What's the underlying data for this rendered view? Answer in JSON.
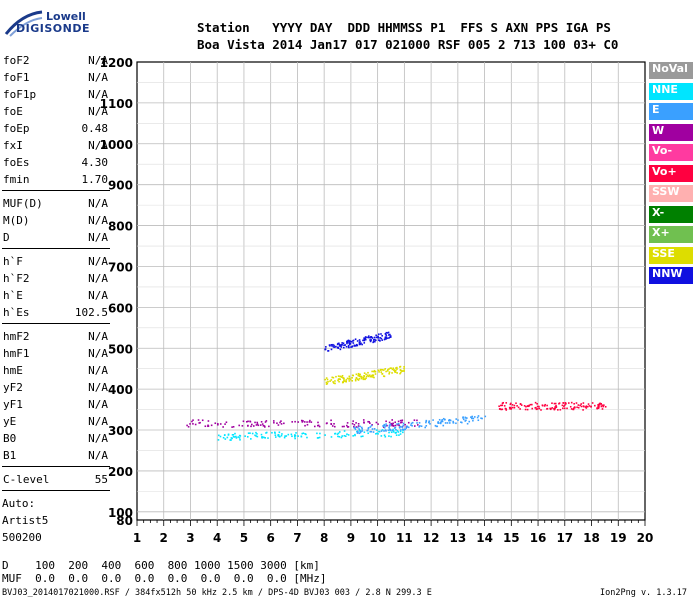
{
  "logo": {
    "line1": "Lowell",
    "line2": "DIGISONDE"
  },
  "header": {
    "row1": "Station   YYYY DAY  DDD HHMMSS P1  FFS S AXN PPS IGA PS",
    "row2": "Boa Vista 2014 Jan17 017 021000 RSF 005 2 713 100 03+ C0"
  },
  "params_group1": [
    {
      "key": "foF2",
      "val": "N/A"
    },
    {
      "key": "foF1",
      "val": "N/A"
    },
    {
      "key": "foF1p",
      "val": "N/A"
    },
    {
      "key": "foE",
      "val": "N/A"
    },
    {
      "key": "foEp",
      "val": "0.48"
    },
    {
      "key": "fxI",
      "val": "N/A"
    },
    {
      "key": "foEs",
      "val": "4.30"
    },
    {
      "key": "fmin",
      "val": "1.70"
    }
  ],
  "params_group2": [
    {
      "key": "MUF(D)",
      "val": "N/A"
    },
    {
      "key": "M(D)",
      "val": "N/A"
    },
    {
      "key": "D",
      "val": "N/A"
    }
  ],
  "params_group3": [
    {
      "key": "h`F",
      "val": "N/A"
    },
    {
      "key": "h`F2",
      "val": "N/A"
    },
    {
      "key": "h`E",
      "val": "N/A"
    },
    {
      "key": "h`Es",
      "val": "102.5"
    }
  ],
  "params_group4": [
    {
      "key": "hmF2",
      "val": "N/A"
    },
    {
      "key": "hmF1",
      "val": "N/A"
    },
    {
      "key": "hmE",
      "val": "N/A"
    },
    {
      "key": "yF2",
      "val": "N/A"
    },
    {
      "key": "yF1",
      "val": "N/A"
    },
    {
      "key": "yE",
      "val": "N/A"
    },
    {
      "key": "B0",
      "val": "N/A"
    },
    {
      "key": "B1",
      "val": "N/A"
    }
  ],
  "params_group5": [
    {
      "key": "C-level",
      "val": "55"
    }
  ],
  "auto": {
    "line1": "Auto:",
    "line2": "Artist5",
    "line3": "500200"
  },
  "legend": [
    {
      "label": "NoVal",
      "color": "#9a9a9a"
    },
    {
      "label": "NNE",
      "color": "#00e5ff"
    },
    {
      "label": "E",
      "color": "#3aa0ff"
    },
    {
      "label": "W",
      "color": "#a000a0"
    },
    {
      "label": "Vo-",
      "color": "#ff3aa0"
    },
    {
      "label": "Vo+",
      "color": "#ff0040"
    },
    {
      "label": "SSW",
      "color": "#ffb0b0"
    },
    {
      "label": "X-",
      "color": "#008000"
    },
    {
      "label": "X+",
      "color": "#70c050"
    },
    {
      "label": "SSE",
      "color": "#dddd00"
    },
    {
      "label": "NNW",
      "color": "#1010e0"
    }
  ],
  "bottom": {
    "d_row": "D    100  200  400  600  800 1000 1500 3000 [km]",
    "muf_row": "MUF  0.0  0.0  0.0  0.0  0.0  0.0  0.0  0.0 [MHz]"
  },
  "footer": {
    "left": "BVJ03_2014017021000.RSF / 384fx512h 50 kHz 2.5 km / DPS-4D BVJ03 003 / 2.8 N 299.3 E",
    "right": "Ion2Png v. 1.3.17"
  },
  "chart_data": {
    "type": "scatter",
    "title": "",
    "xlabel": "",
    "ylabel": "",
    "xlim": [
      1,
      20
    ],
    "ylim": [
      80,
      1200
    ],
    "xticks": [
      1,
      2,
      3,
      4,
      5,
      6,
      7,
      8,
      9,
      10,
      11,
      12,
      13,
      14,
      15,
      16,
      17,
      18,
      19,
      20
    ],
    "yticks": [
      80,
      100,
      200,
      300,
      400,
      500,
      600,
      700,
      800,
      900,
      1000,
      1100,
      1200
    ],
    "grid": true,
    "traces": [
      {
        "name": "W",
        "color": "#a000a0",
        "x": [
          2.8,
          11.5
        ],
        "y": [
          318,
          318
        ]
      },
      {
        "name": "NNE",
        "color": "#00e5ff",
        "x": [
          4.0,
          11.0
        ],
        "y": [
          285,
          295
        ]
      },
      {
        "name": "NNW",
        "color": "#1010e0",
        "x": [
          8.0,
          10.5
        ],
        "y": [
          500,
          535
        ]
      },
      {
        "name": "SSE",
        "color": "#dddd00",
        "x": [
          8.0,
          11.0
        ],
        "y": [
          420,
          450
        ]
      },
      {
        "name": "E",
        "color": "#3aa0ff",
        "x": [
          9.0,
          14.0
        ],
        "y": [
          300,
          330
        ]
      },
      {
        "name": "Vo+",
        "color": "#ff0040",
        "x": [
          14.5,
          18.5
        ],
        "y": [
          360,
          360
        ]
      }
    ]
  }
}
